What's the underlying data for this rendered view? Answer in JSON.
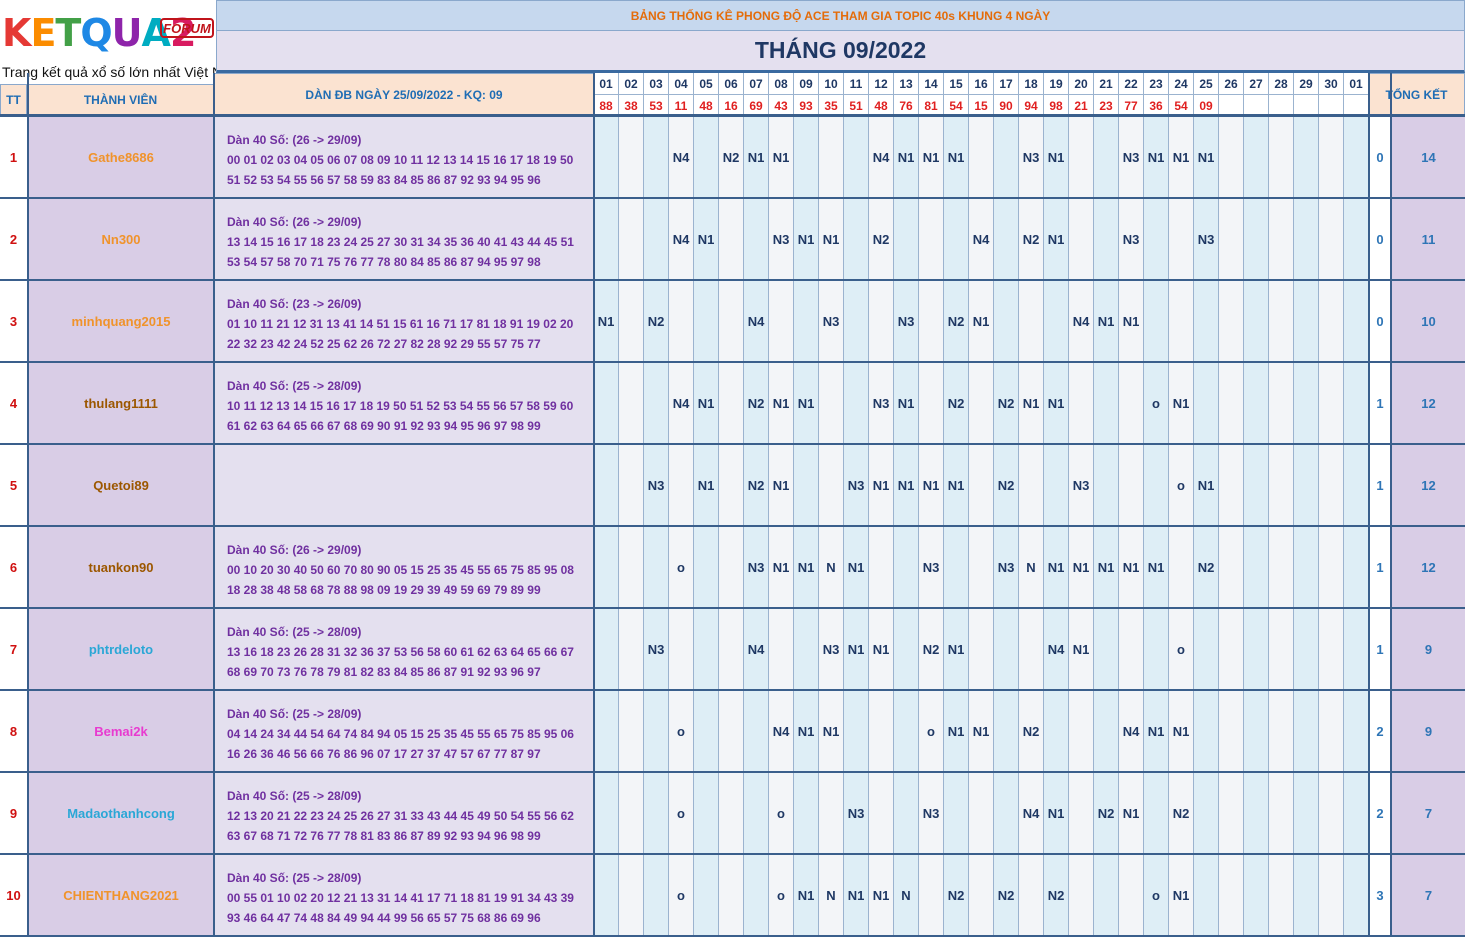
{
  "logo": {
    "brand_letters": [
      "K",
      "E",
      "T",
      "Q",
      "U",
      "A",
      "2"
    ],
    "badge": "FORUM",
    "tagline": "Trang kết quả xổ số lớn nhất Việt Nam"
  },
  "title": "BẢNG THỐNG KÊ PHONG ĐỘ ACE THAM GIA TOPIC 40s KHUNG 4 NGÀY",
  "month": "THÁNG 09/2022",
  "headers": {
    "tt": "TT",
    "member": "THÀNH VIÊN",
    "dan": "DÀN ĐB NGÀY 25/09/2022 - KQ: 09",
    "total": "TỔNG KẾT"
  },
  "days": [
    "01",
    "02",
    "03",
    "04",
    "05",
    "06",
    "07",
    "08",
    "09",
    "10",
    "11",
    "12",
    "13",
    "14",
    "15",
    "16",
    "17",
    "18",
    "19",
    "20",
    "21",
    "22",
    "23",
    "24",
    "25",
    "26",
    "27",
    "28",
    "29",
    "30",
    "01"
  ],
  "results": [
    "88",
    "38",
    "53",
    "11",
    "48",
    "16",
    "69",
    "43",
    "93",
    "35",
    "51",
    "48",
    "76",
    "81",
    "54",
    "15",
    "90",
    "94",
    "98",
    "21",
    "23",
    "77",
    "36",
    "54",
    "09",
    "",
    "",
    "",
    "",
    "",
    ""
  ],
  "colors": {
    "header_orange": "#e46c0a",
    "title_navy": "#1f3864",
    "dan_purple": "#7030a0",
    "result_red": "#e02020",
    "totals_blue": "#2e75b6"
  },
  "rows": [
    {
      "tt": "1",
      "name": "Gathe8686",
      "name_color": "#f0932b",
      "dan": [
        "Dàn 40 Số: (26 -> 29/09)",
        "00 01 02 03 04 05 06 07 08 09 10 11 12 13 14 15 16 17 18 19 50",
        "51 52 53 54 55 56 57 58 59 83 84 85 86 87 92 93 94 95 96"
      ],
      "cells": [
        "",
        "",
        "",
        "N4",
        "",
        "N2",
        "N1",
        "N1",
        "",
        "",
        "",
        "N4",
        "N1",
        "N1",
        "N1",
        "",
        "",
        "N3",
        "N1",
        "",
        "",
        "N3",
        "N1",
        "N1",
        "N1",
        "",
        "",
        "",
        "",
        "",
        ""
      ],
      "hit": "0",
      "total": "14"
    },
    {
      "tt": "2",
      "name": "Nn300",
      "name_color": "#f0932b",
      "dan": [
        "Dàn 40 Số: (26 -> 29/09)",
        "13 14 15 16 17 18 23 24 25 27 30 31 34 35 36 40 41 43 44 45 51",
        "53 54 57 58 70 71 75 76 77 78 80 84 85 86 87 94 95 97 98"
      ],
      "cells": [
        "",
        "",
        "",
        "N4",
        "N1",
        "",
        "",
        "N3",
        "N1",
        "N1",
        "",
        "N2",
        "",
        "",
        "",
        "N4",
        "",
        "N2",
        "N1",
        "",
        "",
        "N3",
        "",
        "",
        "N3",
        "",
        "",
        "",
        "",
        "",
        ""
      ],
      "hit": "0",
      "total": "11"
    },
    {
      "tt": "3",
      "name": "minhquang2015",
      "name_color": "#f0932b",
      "dan": [
        "Dàn 40 Số: (23 -> 26/09)",
        "01 10 11 21 12 31 13 41 14 51 15 61 16 71 17 81 18 91 19 02 20",
        "22 32 23 42 24 52 25 62 26 72 27 82 28 92 29 55 57 75 77"
      ],
      "cells": [
        "N1",
        "",
        "N2",
        "",
        "",
        "",
        "N4",
        "",
        "",
        "N3",
        "",
        "",
        "N3",
        "",
        "N2",
        "N1",
        "",
        "",
        "",
        "N4",
        "N1",
        "N1",
        "",
        "",
        "",
        "",
        "",
        "",
        "",
        "",
        ""
      ],
      "hit": "0",
      "total": "10"
    },
    {
      "tt": "4",
      "name": "thulang1111",
      "name_color": "#9c5700",
      "dan": [
        "Dàn 40 Số: (25 -> 28/09)",
        "10 11 12 13 14 15 16 17 18 19 50 51 52 53 54 55 56 57 58 59 60",
        "61 62 63 64 65 66 67 68 69 90 91 92 93 94 95 96 97 98 99"
      ],
      "cells": [
        "",
        "",
        "",
        "N4",
        "N1",
        "",
        "N2",
        "N1",
        "N1",
        "",
        "",
        "N3",
        "N1",
        "",
        "N2",
        "",
        "N2",
        "N1",
        "N1",
        "",
        "",
        "",
        "o",
        "N1",
        "",
        "",
        "",
        "",
        "",
        "",
        ""
      ],
      "hit": "1",
      "total": "12"
    },
    {
      "tt": "5",
      "name": "Quetoi89",
      "name_color": "#9c5700",
      "dan": [
        "",
        "",
        ""
      ],
      "cells": [
        "",
        "",
        "N3",
        "",
        "N1",
        "",
        "N2",
        "N1",
        "",
        "",
        "N3",
        "N1",
        "N1",
        "N1",
        "N1",
        "",
        "N2",
        "",
        "",
        "N3",
        "",
        "",
        "",
        "o",
        "N1",
        "",
        "",
        "",
        "",
        "",
        ""
      ],
      "hit": "1",
      "total": "12"
    },
    {
      "tt": "6",
      "name": "tuankon90",
      "name_color": "#9c5700",
      "dan": [
        "Dàn 40 Số: (26 -> 29/09)",
        "00 10 20 30 40 50 60 70 80 90 05 15 25 35 45 55 65 75 85 95 08",
        "18 28 38 48 58 68 78 88 98 09 19 29 39 49 59 69 79 89 99"
      ],
      "cells": [
        "",
        "",
        "",
        "o",
        "",
        "",
        "N3",
        "N1",
        "N1",
        "N",
        "N1",
        "",
        "",
        "N3",
        "",
        "",
        "N3",
        "N",
        "N1",
        "N1",
        "N1",
        "N1",
        "N1",
        "",
        "N2",
        "",
        "",
        "",
        "",
        "",
        ""
      ],
      "hit": "1",
      "total": "12"
    },
    {
      "tt": "7",
      "name": "phtrdeloto",
      "name_color": "#2aa7d6",
      "dan": [
        "Dàn 40 Số: (25 -> 28/09)",
        "13 16 18 23 26 28 31 32 36 37 53 56 58 60 61 62 63 64 65 66 67",
        "68 69 70 73 76 78 79 81 82 83 84 85 86 87 91 92 93 96 97"
      ],
      "cells": [
        "",
        "",
        "N3",
        "",
        "",
        "",
        "N4",
        "",
        "",
        "N3",
        "N1",
        "N1",
        "",
        "N2",
        "N1",
        "",
        "",
        "",
        "N4",
        "N1",
        "",
        "",
        "",
        "o",
        "",
        "",
        "",
        "",
        "",
        "",
        ""
      ],
      "hit": "1",
      "total": "9"
    },
    {
      "tt": "8",
      "name": "Bemai2k",
      "name_color": "#e83ad0",
      "dan": [
        "Dàn 40 Số: (25 -> 28/09)",
        "04 14 24 34 44 54 64 74 84 94 05 15 25 35 45 55 65 75 85 95 06",
        "16 26 36 46 56 66 76 86 96 07 17 27 37 47 57 67 77 87 97"
      ],
      "cells": [
        "",
        "",
        "",
        "o",
        "",
        "",
        "",
        "N4",
        "N1",
        "N1",
        "",
        "",
        "",
        "o",
        "N1",
        "N1",
        "",
        "N2",
        "",
        "",
        "",
        "N4",
        "N1",
        "N1",
        "",
        "",
        "",
        "",
        "",
        "",
        ""
      ],
      "hit": "2",
      "total": "9"
    },
    {
      "tt": "9",
      "name": "Madaothanhcong",
      "name_color": "#2aa7d6",
      "dan": [
        "Dàn 40 Số: (25 -> 28/09)",
        "12 13 20 21 22 23 24 25 26 27 31 33 43 44 45 49 50 54 55 56 62",
        "63 67 68 71 72 76 77 78 81 83 86 87 89 92 93 94 96 98 99"
      ],
      "cells": [
        "",
        "",
        "",
        "o",
        "",
        "",
        "",
        "o",
        "",
        "",
        "N3",
        "",
        "",
        "N3",
        "",
        "",
        "",
        "N4",
        "N1",
        "",
        "N2",
        "N1",
        "",
        "N2",
        "",
        "",
        "",
        "",
        "",
        "",
        ""
      ],
      "hit": "2",
      "total": "7"
    },
    {
      "tt": "10",
      "name": "CHIENTHANG2021",
      "name_color": "#f0932b",
      "dan": [
        "Dàn 40 Số: (25 -> 28/09)",
        "00 55 01 10 02 20 12 21 13 31 14 41 17 71 18 81 19 91 34 43 39",
        "93 46 64 47 74 48 84 49 94 44 99 56 65 57 75 68 86 69 96"
      ],
      "cells": [
        "",
        "",
        "",
        "o",
        "",
        "",
        "",
        "o",
        "N1",
        "N",
        "N1",
        "N1",
        "N",
        "",
        "N2",
        "",
        "N2",
        "",
        "N2",
        "",
        "",
        "",
        "o",
        "N1",
        "",
        "",
        "",
        "",
        "",
        "",
        ""
      ],
      "hit": "3",
      "total": "7"
    }
  ]
}
